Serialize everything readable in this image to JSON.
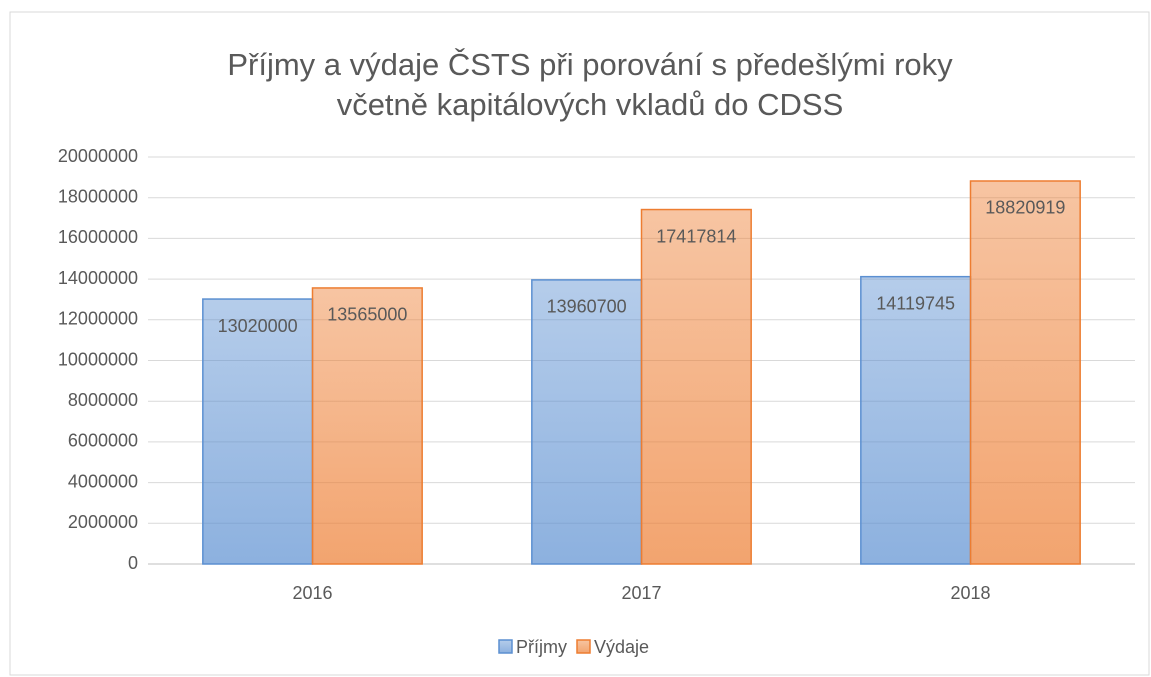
{
  "chart_data": {
    "type": "bar",
    "title": [
      "Příjmy a výdaje ČSTS při porování s předešlými roky",
      "včetně kapitálových vkladů do CDSS"
    ],
    "categories": [
      "2016",
      "2017",
      "2018"
    ],
    "series": [
      {
        "name": "Příjmy",
        "color": "#5b8fd1",
        "values": [
          13020000,
          13960700,
          14119745
        ]
      },
      {
        "name": "Výdaje",
        "color": "#ed7d31",
        "values": [
          13565000,
          17417814,
          18820919
        ]
      }
    ],
    "ylim": [
      0,
      20000000
    ],
    "yticks": [
      0,
      2000000,
      4000000,
      6000000,
      8000000,
      10000000,
      12000000,
      14000000,
      16000000,
      18000000,
      20000000
    ],
    "grid": true,
    "legend": "bottom",
    "data_labels": true
  }
}
